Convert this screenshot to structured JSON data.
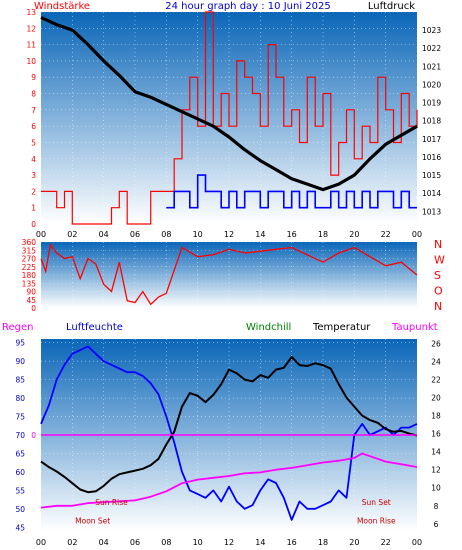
{
  "header": {
    "left_label": "Windstärke",
    "title": "24 hour graph day : 10 Juni 2025",
    "right_label": "Luftdruck"
  },
  "header2": {
    "regen": "Regen",
    "luftfeuchte": "Luftfeuchte",
    "windchill": "Windchill",
    "temperatur": "Temperatur",
    "taupunkt": "Taupunkt"
  },
  "colors": {
    "panel_top": "#0a66b8",
    "panel_bottom": "#ffffff",
    "red": "#ff0000",
    "blue": "#0000ff",
    "black": "#000000",
    "green": "#008000",
    "magenta": "#ff00ff",
    "title_blue": "#0000cc"
  },
  "chart_data": [
    {
      "id": "wind_pressure",
      "type": "line",
      "x_ticks": [
        "00",
        "02",
        "04",
        "06",
        "08",
        "10",
        "12",
        "14",
        "16",
        "18",
        "20",
        "22",
        "00"
      ],
      "y_left": {
        "label": "Windstärke",
        "ticks": [
          0,
          1,
          2,
          3,
          4,
          5,
          6,
          7,
          8,
          9,
          10,
          11,
          12,
          13
        ],
        "ylim": [
          0,
          13
        ]
      },
      "y_right": {
        "label": "Luftdruck",
        "ticks": [
          1013,
          1014,
          1015,
          1016,
          1017,
          1018,
          1019,
          1020,
          1021,
          1022,
          1023
        ],
        "ylim": [
          1012.3,
          1024
        ]
      },
      "series": [
        {
          "name": "Windstärke",
          "color": "red",
          "kind": "wind_gust",
          "x": [
            0,
            0.5,
            1,
            1.5,
            2,
            3,
            4,
            4.5,
            5,
            5.5,
            6,
            6.5,
            7,
            8,
            8.5,
            9,
            9.5,
            10,
            10.5,
            11,
            11.5,
            12,
            12.5,
            13,
            13.5,
            14,
            14.5,
            15,
            15.5,
            16,
            16.5,
            17,
            17.5,
            18,
            18.5,
            19,
            19.5,
            20,
            20.5,
            21,
            21.5,
            22,
            22.5,
            23,
            23.5,
            24
          ],
          "values": [
            2,
            2,
            1,
            2,
            0,
            0,
            0,
            1,
            2,
            0,
            0,
            0,
            2,
            2,
            4,
            7,
            9,
            6,
            13,
            6,
            8,
            6,
            10,
            9,
            8,
            6,
            11,
            9,
            6,
            7,
            5,
            9,
            6,
            8,
            3,
            5,
            7,
            4,
            6,
            5,
            9,
            7,
            5,
            8,
            6,
            7
          ]
        },
        {
          "name": "Wind mittel",
          "color": "blue",
          "kind": "wind_avg",
          "x": [
            8,
            8.5,
            9,
            9.5,
            10,
            10.5,
            11,
            11.5,
            12,
            12.5,
            13,
            13.5,
            14,
            14.5,
            15,
            15.5,
            16,
            16.5,
            17,
            17.5,
            18,
            18.5,
            19,
            19.5,
            20,
            20.5,
            21,
            21.5,
            22,
            22.5,
            23,
            23.5,
            24
          ],
          "values": [
            1,
            2,
            2,
            1,
            3,
            2,
            2,
            1,
            2,
            1,
            2,
            2,
            1,
            2,
            2,
            1,
            2,
            1,
            2,
            1,
            1,
            2,
            1,
            2,
            1,
            2,
            1,
            2,
            2,
            1,
            2,
            1,
            1
          ]
        },
        {
          "name": "Luftdruck",
          "color": "black",
          "kind": "pressure",
          "x": [
            0,
            1,
            2,
            3,
            4,
            5,
            6,
            7,
            8,
            9,
            10,
            11,
            12,
            13,
            14,
            15,
            16,
            17,
            18,
            19,
            20,
            21,
            22,
            23,
            24
          ],
          "values": [
            1023.7,
            1023.3,
            1023.0,
            1022.2,
            1021.3,
            1020.5,
            1019.6,
            1019.3,
            1018.9,
            1018.5,
            1018.1,
            1017.7,
            1017.1,
            1016.4,
            1015.8,
            1015.3,
            1014.8,
            1014.5,
            1014.2,
            1014.5,
            1015.0,
            1015.9,
            1016.7,
            1017.2,
            1017.7
          ]
        }
      ]
    },
    {
      "id": "wind_direction",
      "type": "line",
      "y_left_ticks": [
        0,
        45,
        90,
        135,
        180,
        225,
        270,
        315,
        360
      ],
      "ylim": [
        0,
        360
      ],
      "compass": [
        "N",
        "W",
        "S",
        "O",
        "N"
      ],
      "series": [
        {
          "name": "Windrichtung",
          "color": "red",
          "x": [
            0,
            0.3,
            0.6,
            1,
            1.5,
            2,
            2.5,
            3,
            3.5,
            4,
            4.5,
            5,
            5.5,
            6,
            6.5,
            7,
            7.5,
            8,
            9,
            10,
            11,
            12,
            13,
            14,
            15,
            16,
            17,
            18,
            19,
            20,
            21,
            22,
            23,
            24
          ],
          "values": [
            270,
            200,
            345,
            300,
            270,
            280,
            160,
            270,
            240,
            130,
            90,
            250,
            40,
            30,
            90,
            20,
            60,
            80,
            330,
            280,
            290,
            320,
            300,
            310,
            320,
            330,
            290,
            250,
            300,
            330,
            280,
            230,
            250,
            180
          ]
        }
      ]
    },
    {
      "id": "temp_humidity",
      "type": "line",
      "x_ticks": [
        "00",
        "02",
        "04",
        "06",
        "08",
        "10",
        "12",
        "14",
        "16",
        "18",
        "20",
        "22",
        "00"
      ],
      "y_left": {
        "label": "Luftfeuchte",
        "ticks": [
          45,
          50,
          55,
          60,
          65,
          70,
          75,
          80,
          85,
          90,
          95
        ],
        "ylim": [
          44,
          96
        ]
      },
      "y_right": {
        "label": "Temperatur",
        "ticks": [
          6,
          8,
          10,
          12,
          14,
          16,
          18,
          20,
          22,
          24,
          26
        ],
        "ylim": [
          5.2,
          26.5
        ]
      },
      "regen_label": "0",
      "series": [
        {
          "name": "Luftfeuchte",
          "color": "blue",
          "axis": "left",
          "x": [
            0,
            0.5,
            1,
            1.5,
            2,
            2.5,
            3,
            3.5,
            4,
            4.5,
            5,
            5.5,
            6,
            6.5,
            7,
            7.5,
            8,
            8.5,
            9,
            9.5,
            10,
            10.5,
            11,
            11.5,
            12,
            12.5,
            13,
            13.5,
            14,
            14.5,
            15,
            15.5,
            16,
            16.5,
            17,
            17.5,
            18,
            18.5,
            19,
            19.5,
            20,
            20.5,
            21,
            21.5,
            22,
            22.5,
            23,
            23.5,
            24
          ],
          "values": [
            73,
            78,
            85,
            89,
            92,
            93,
            94,
            92,
            90,
            89,
            88,
            87,
            87,
            86,
            84,
            81,
            75,
            68,
            60,
            55,
            54,
            53,
            55,
            52,
            56,
            52,
            50,
            51,
            55,
            58,
            57,
            53,
            47,
            52,
            50,
            50,
            51,
            52,
            55,
            53,
            70,
            73,
            70,
            71,
            72,
            70,
            72,
            72,
            73
          ]
        },
        {
          "name": "Temperatur",
          "color": "black",
          "axis": "right",
          "x": [
            0,
            0.5,
            1,
            1.5,
            2,
            2.5,
            3,
            3.5,
            4,
            4.5,
            5,
            5.5,
            6,
            6.5,
            7,
            7.5,
            8,
            8.5,
            9,
            9.5,
            10,
            10.5,
            11,
            11.5,
            12,
            12.5,
            13,
            13.5,
            14,
            14.5,
            15,
            15.5,
            16,
            16.5,
            17,
            17.5,
            18,
            18.5,
            19,
            19.5,
            20,
            20.5,
            21,
            21.5,
            22,
            22.5,
            23,
            23.5,
            24
          ],
          "values": [
            12.9,
            12.3,
            11.8,
            11.2,
            10.5,
            9.8,
            9.5,
            9.6,
            10.2,
            11.0,
            11.5,
            11.7,
            11.9,
            12.1,
            12.5,
            13.2,
            14.8,
            16.2,
            19.0,
            20.5,
            20.2,
            19.5,
            20.3,
            21.5,
            23.1,
            22.7,
            22.0,
            21.8,
            22.5,
            22.2,
            23.1,
            23.3,
            24.5,
            23.6,
            23.5,
            23.8,
            23.6,
            23.2,
            21.5,
            20.0,
            19.0,
            18.0,
            17.5,
            17.2,
            16.5,
            16.2,
            16.3,
            16.0,
            15.8
          ]
        },
        {
          "name": "Windchill",
          "color": "green",
          "axis": "right",
          "x": [
            0,
            24
          ],
          "values": [
            null,
            null
          ]
        },
        {
          "name": "Taupunkt",
          "color": "magenta",
          "axis": "right",
          "x": [
            0,
            1,
            2,
            3,
            4,
            5,
            6,
            7,
            8,
            9,
            10,
            11,
            12,
            13,
            14,
            15,
            16,
            17,
            18,
            19,
            20,
            20.5,
            21,
            22,
            23,
            24
          ],
          "values": [
            7.8,
            8.0,
            8.0,
            8.3,
            8.4,
            8.5,
            8.6,
            9.0,
            9.6,
            10.5,
            10.9,
            11.1,
            11.3,
            11.6,
            11.7,
            12.0,
            12.2,
            12.5,
            12.8,
            13.0,
            13.3,
            13.8,
            13.5,
            12.9,
            12.6,
            12.3
          ]
        },
        {
          "name": "Regen",
          "color": "magenta",
          "axis": "regen",
          "x": [
            0,
            24
          ],
          "values": [
            0,
            0
          ]
        }
      ],
      "annotations": [
        {
          "text": "Sun Rise",
          "x_hour": 4.5,
          "y_humidity": 51
        },
        {
          "text": "Moon Set",
          "x_hour": 3.3,
          "y_humidity": 46
        },
        {
          "text": "Sun Set",
          "x_hour": 21.4,
          "y_humidity": 51
        },
        {
          "text": "Moon Rise",
          "x_hour": 21.4,
          "y_humidity": 46
        }
      ]
    }
  ]
}
